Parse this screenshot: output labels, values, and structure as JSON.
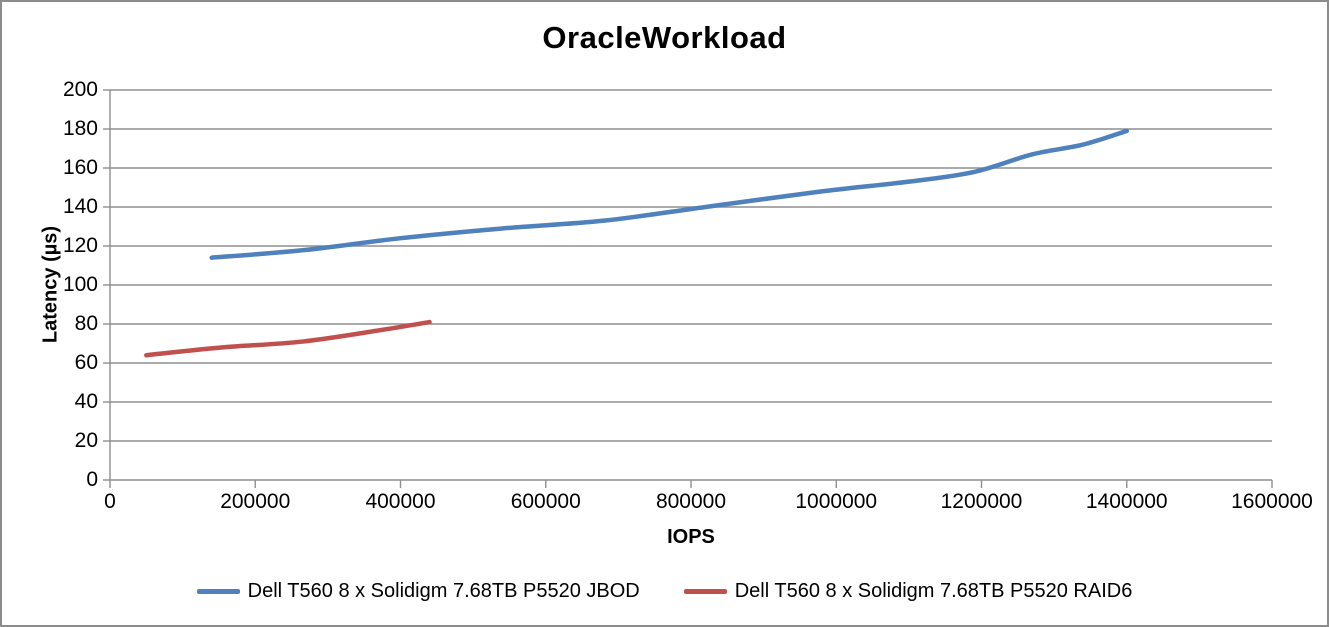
{
  "title": "OracleWorkload",
  "chart_data": {
    "type": "line",
    "title": "OracleWorkload",
    "xlabel": "IOPS",
    "ylabel": "Latency (µs)",
    "xlim": [
      0,
      1600000
    ],
    "ylim": [
      0,
      200
    ],
    "x_ticks": [
      0,
      200000,
      400000,
      600000,
      800000,
      1000000,
      1200000,
      1400000,
      1600000
    ],
    "y_ticks": [
      0,
      20,
      40,
      60,
      80,
      100,
      120,
      140,
      160,
      180,
      200
    ],
    "grid": "horizontal-major",
    "legend_position": "bottom",
    "series": [
      {
        "name": "Dell T560 8 x Solidigm 7.68TB P5520 JBOD",
        "color": "#4F81BD",
        "points": [
          [
            140000,
            114
          ],
          [
            270000,
            118
          ],
          [
            400000,
            124
          ],
          [
            540000,
            129
          ],
          [
            680000,
            133
          ],
          [
            820000,
            140
          ],
          [
            980000,
            148
          ],
          [
            1100000,
            153
          ],
          [
            1190000,
            158
          ],
          [
            1270000,
            167
          ],
          [
            1340000,
            172
          ],
          [
            1400000,
            179
          ]
        ]
      },
      {
        "name": "Dell T560 8 x Solidigm 7.68TB P5520 RAID6",
        "color": "#C0504D",
        "points": [
          [
            50000,
            64
          ],
          [
            155000,
            68
          ],
          [
            265000,
            71
          ],
          [
            375000,
            77
          ],
          [
            440000,
            81
          ]
        ]
      }
    ]
  },
  "colors": {
    "background": "#FFFFFF",
    "border": "#8C8C8C",
    "gridline": "#8E8E8E",
    "axis": "#8E8E8E",
    "text": "#000000",
    "series_blue": "#4F81BD",
    "series_red": "#C0504D"
  }
}
